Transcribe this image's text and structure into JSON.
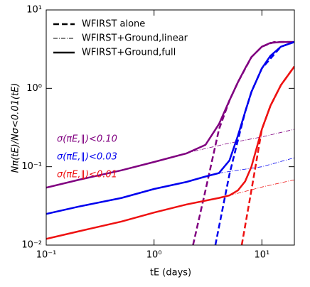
{
  "chart_data": {
    "type": "line",
    "xlabel": "tE (days)",
    "ylabel": "Nπ(tE)/Nσ<0.01(tE)",
    "xscale": "log",
    "yscale": "log",
    "xlim": [
      0.1,
      20
    ],
    "ylim": [
      0.01,
      10
    ],
    "xticks": [
      {
        "value": 0.1,
        "label": "10⁻¹"
      },
      {
        "value": 1,
        "label": "10⁰"
      },
      {
        "value": 10,
        "label": "10¹"
      }
    ],
    "yticks": [
      {
        "value": 0.01,
        "label": "10⁻²"
      },
      {
        "value": 0.1,
        "label": "10⁻¹"
      },
      {
        "value": 1,
        "label": "10⁰"
      },
      {
        "value": 10,
        "label": "10¹"
      }
    ],
    "legend": {
      "loc": "upper left",
      "color": "#000000",
      "entries": [
        {
          "label": "WFIRST alone",
          "style": "dashed"
        },
        {
          "label": "WFIRST+Ground,linear",
          "style": "dashdot"
        },
        {
          "label": "WFIRST+Ground,full",
          "style": "solid"
        }
      ]
    },
    "annotations": [
      {
        "text": "σ(πE,∥)<0.10",
        "color": "#800080"
      },
      {
        "text": "σ(πE,∥)<0.03",
        "color": "#0000ee"
      },
      {
        "text": "σ(πE,∥)<0.01",
        "color": "#ee1111"
      }
    ],
    "series": [
      {
        "color": "#800080",
        "style": "solid",
        "x": [
          0.1,
          0.2,
          0.5,
          1,
          2,
          3,
          4,
          5,
          6,
          7,
          8,
          10,
          12,
          15,
          20
        ],
        "values": [
          0.054,
          0.068,
          0.09,
          0.115,
          0.148,
          0.19,
          0.35,
          0.7,
          1.2,
          1.8,
          2.5,
          3.4,
          3.8,
          3.9,
          3.9
        ]
      },
      {
        "color": "#800080",
        "style": "dashed",
        "x": [
          2.3,
          3,
          4,
          5,
          6,
          8,
          10,
          13,
          20
        ],
        "values": [
          0.01,
          0.05,
          0.3,
          0.7,
          1.2,
          2.5,
          3.4,
          3.9,
          3.9
        ]
      },
      {
        "color": "#800080",
        "style": "dashdot",
        "x": [
          2,
          5,
          10,
          20
        ],
        "values": [
          0.15,
          0.2,
          0.24,
          0.3
        ]
      },
      {
        "color": "#0000ee",
        "style": "solid",
        "x": [
          0.1,
          0.2,
          0.5,
          1,
          2,
          3,
          4,
          5,
          6,
          7,
          8,
          10,
          12,
          15,
          20
        ],
        "values": [
          0.025,
          0.031,
          0.04,
          0.052,
          0.064,
          0.075,
          0.083,
          0.12,
          0.25,
          0.5,
          0.9,
          1.8,
          2.6,
          3.4,
          3.9
        ]
      },
      {
        "color": "#0000ee",
        "style": "dashed",
        "x": [
          3.7,
          5,
          6,
          7,
          8,
          10,
          15,
          20
        ],
        "values": [
          0.01,
          0.08,
          0.22,
          0.5,
          0.9,
          1.8,
          3.4,
          3.9
        ]
      },
      {
        "color": "#0000ee",
        "style": "dashdot",
        "x": [
          4,
          10,
          20
        ],
        "values": [
          0.083,
          0.1,
          0.13
        ]
      },
      {
        "color": "#ee1111",
        "style": "solid",
        "x": [
          0.1,
          0.2,
          0.5,
          1,
          2,
          4,
          5,
          6,
          7,
          8,
          10,
          12,
          15,
          20
        ],
        "values": [
          0.012,
          0.015,
          0.02,
          0.026,
          0.033,
          0.04,
          0.043,
          0.05,
          0.065,
          0.1,
          0.3,
          0.6,
          1.1,
          1.9
        ]
      },
      {
        "color": "#ee1111",
        "style": "dashed",
        "x": [
          6.5,
          8,
          10,
          12,
          15,
          20
        ],
        "values": [
          0.01,
          0.05,
          0.3,
          0.6,
          1.1,
          1.9
        ]
      },
      {
        "color": "#ee1111",
        "style": "dashdot",
        "x": [
          5,
          10,
          20
        ],
        "values": [
          0.043,
          0.055,
          0.068
        ]
      }
    ]
  }
}
